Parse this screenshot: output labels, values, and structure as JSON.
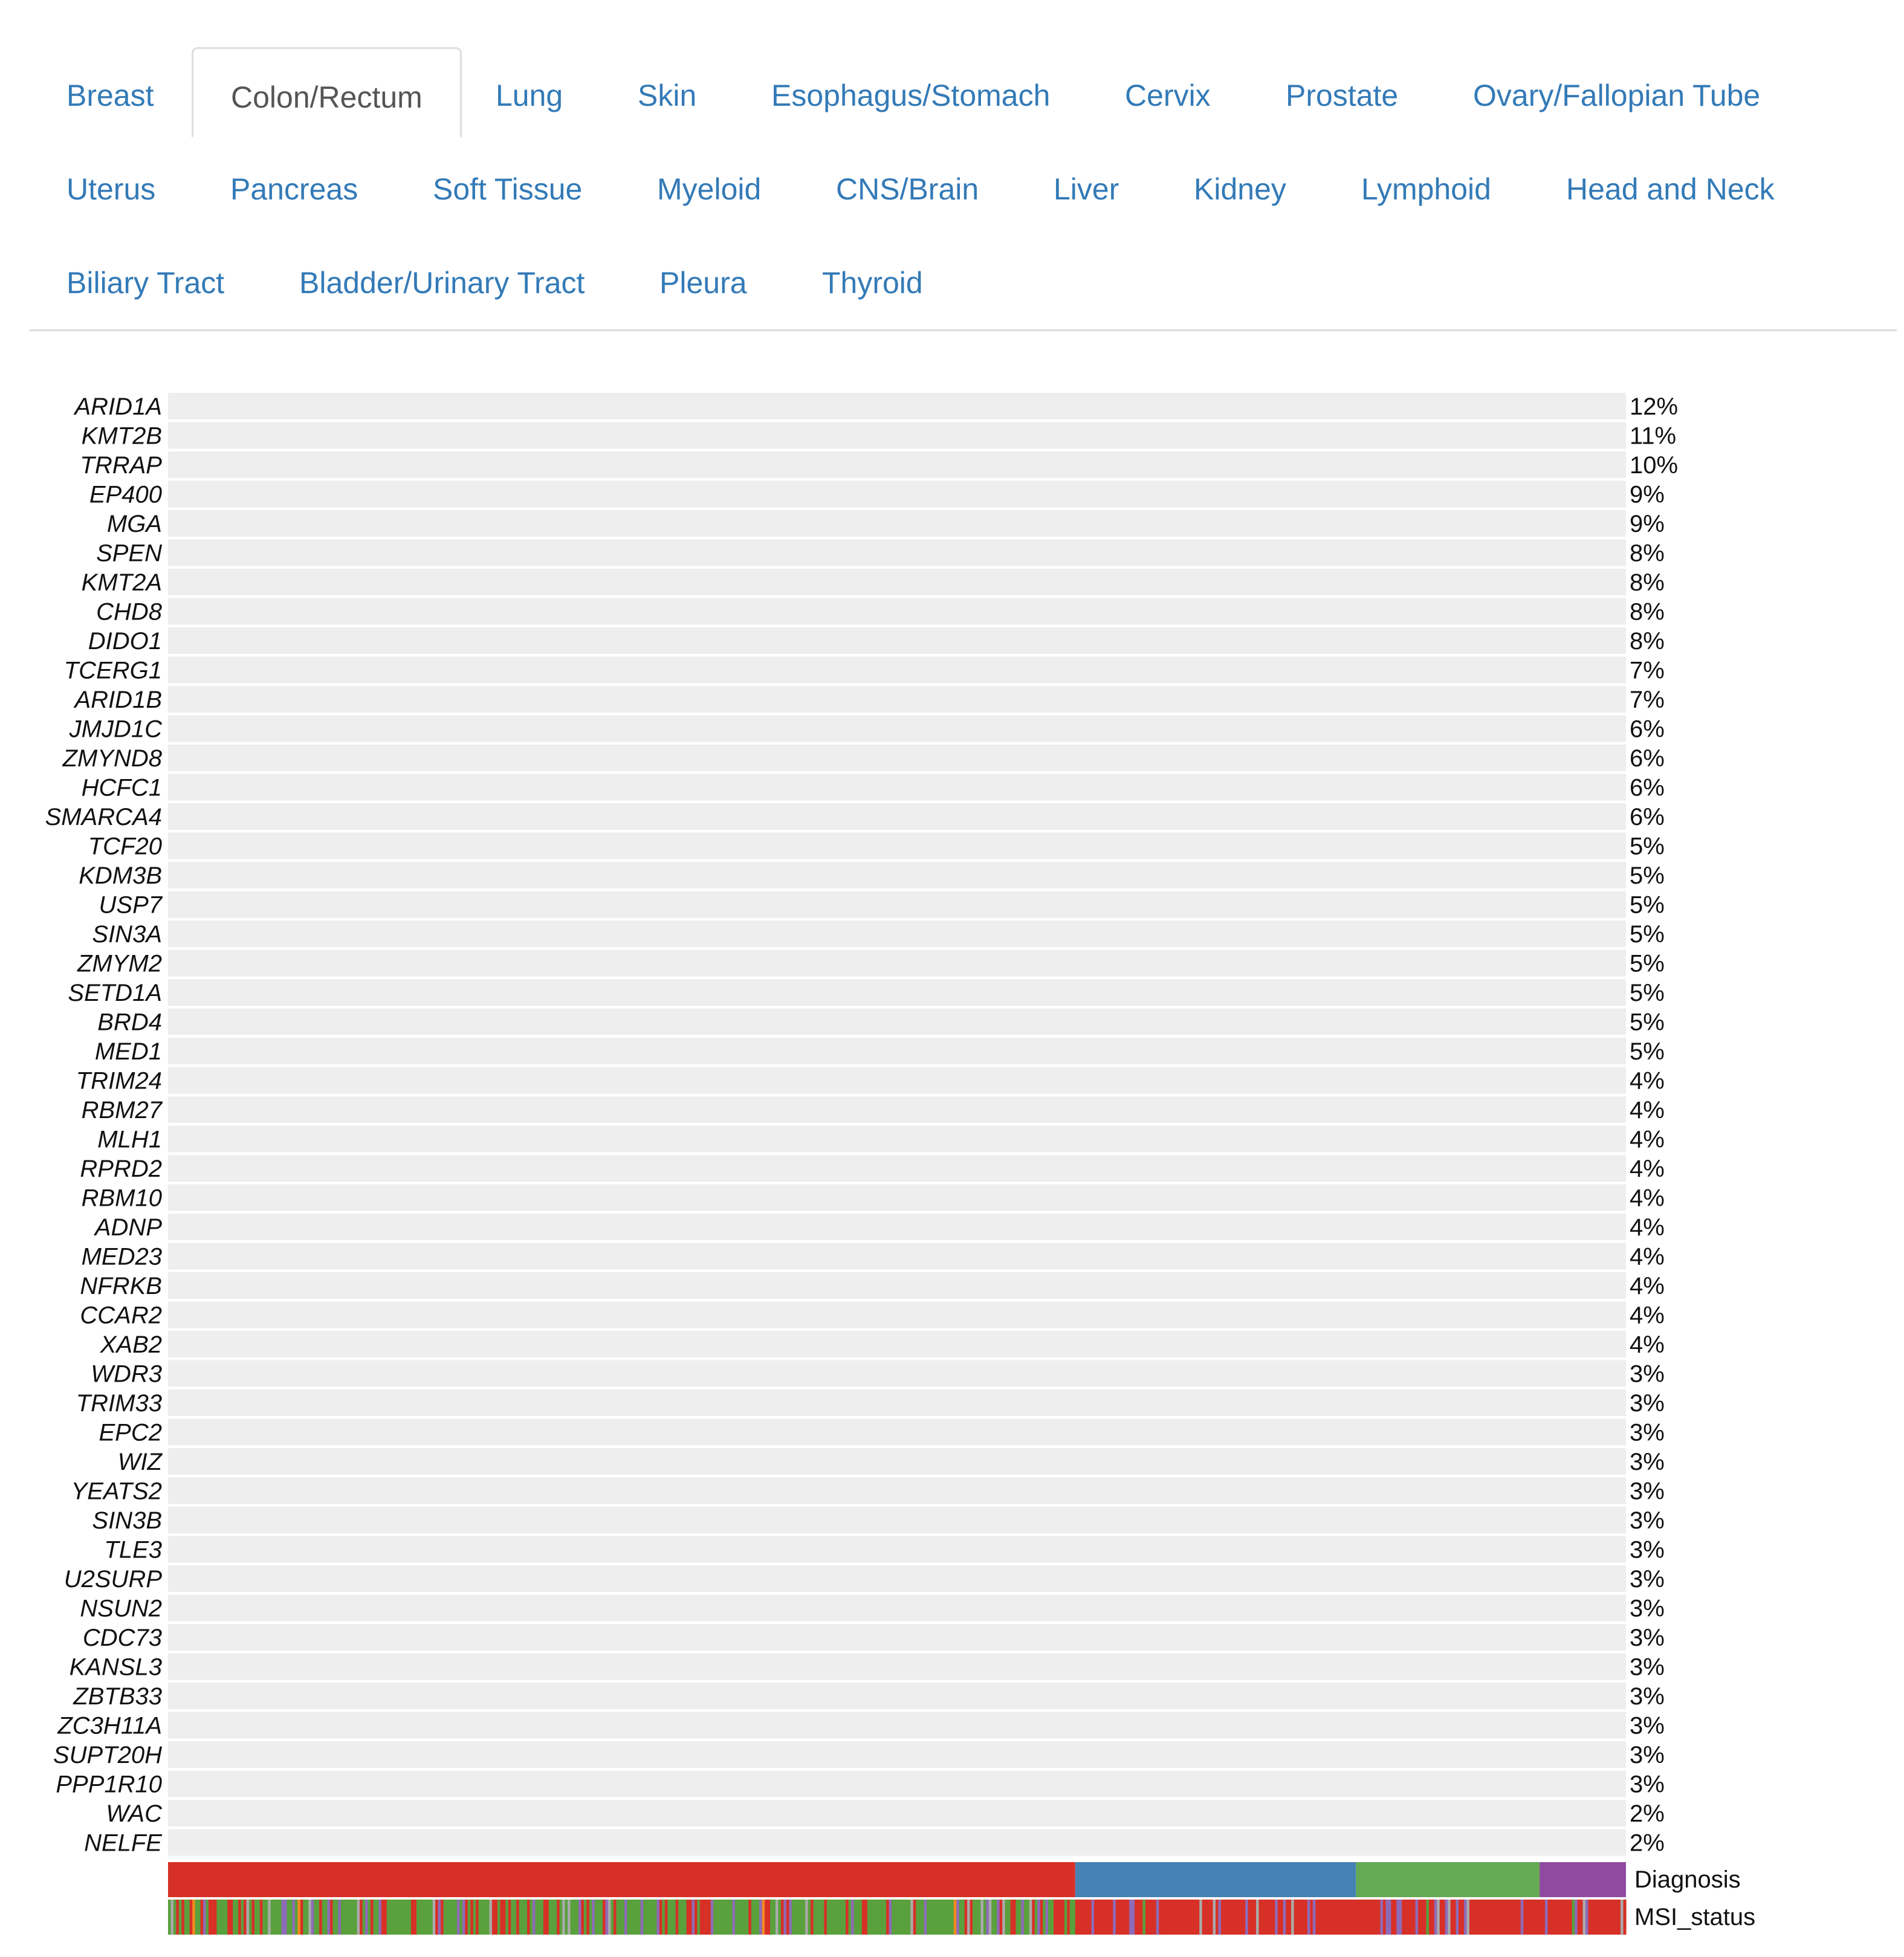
{
  "tabs": {
    "rows": [
      [
        "Breast",
        "Colon/Rectum",
        "Lung",
        "Skin",
        "Esophagus/Stomach",
        "Cervix",
        "Prostate",
        "Ovary/Fallopian Tube"
      ],
      [
        "Uterus",
        "Pancreas",
        "Soft Tissue",
        "Myeloid",
        "CNS/Brain",
        "Liver",
        "Kidney",
        "Lymphoid",
        "Head and Neck"
      ],
      [
        "Biliary Tract",
        "Bladder/Urinary Tract",
        "Pleura",
        "Thyroid"
      ]
    ],
    "active": "Colon/Rectum"
  },
  "chart_data": {
    "type": "heatmap",
    "subtype": "oncoprint",
    "genes": [
      "ARID1A",
      "KMT2B",
      "TRRAP",
      "EP400",
      "MGA",
      "SPEN",
      "KMT2A",
      "CHD8",
      "DIDO1",
      "TCERG1",
      "ARID1B",
      "JMJD1C",
      "ZMYND8",
      "HCFC1",
      "SMARCA4",
      "TCF20",
      "KDM3B",
      "USP7",
      "SIN3A",
      "ZMYM2",
      "SETD1A",
      "BRD4",
      "MED1",
      "TRIM24",
      "RBM27",
      "MLH1",
      "RPRD2",
      "RBM10",
      "ADNP",
      "MED23",
      "NFRKB",
      "CCAR2",
      "XAB2",
      "WDR3",
      "TRIM33",
      "EPC2",
      "WIZ",
      "YEATS2",
      "SIN3B",
      "TLE3",
      "U2SURP",
      "NSUN2",
      "CDC73",
      "KANSL3",
      "ZBTB33",
      "ZC3H11A",
      "SUPT20H",
      "PPP1R10",
      "WAC",
      "NELFE"
    ],
    "percentages": [
      "12%",
      "11%",
      "10%",
      "9%",
      "9%",
      "8%",
      "8%",
      "8%",
      "8%",
      "7%",
      "7%",
      "6%",
      "6%",
      "6%",
      "6%",
      "5%",
      "5%",
      "5%",
      "5%",
      "5%",
      "5%",
      "5%",
      "5%",
      "4%",
      "4%",
      "4%",
      "4%",
      "4%",
      "4%",
      "4%",
      "4%",
      "4%",
      "4%",
      "3%",
      "3%",
      "3%",
      "3%",
      "3%",
      "3%",
      "3%",
      "3%",
      "3%",
      "3%",
      "3%",
      "3%",
      "3%",
      "3%",
      "3%",
      "2%",
      "2%"
    ],
    "frequency_values": [
      12,
      11,
      10,
      9,
      9,
      8,
      8,
      8,
      8,
      7,
      7,
      6,
      6,
      6,
      6,
      5,
      5,
      5,
      5,
      5,
      5,
      5,
      5,
      4,
      4,
      4,
      4,
      4,
      4,
      4,
      4,
      4,
      4,
      3,
      3,
      3,
      3,
      3,
      3,
      3,
      3,
      3,
      3,
      3,
      3,
      3,
      3,
      3,
      2,
      2
    ],
    "annotation_tracks": [
      "Diagnosis",
      "MSI_status"
    ],
    "diagnosis_groups": [
      {
        "color": "#d73027",
        "fraction": 0.623
      },
      {
        "color": "#4682b4",
        "fraction": 0.192
      },
      {
        "color": "#66aa55",
        "fraction": 0.126
      },
      {
        "color": "#8e4ba0",
        "fraction": 0.059
      }
    ],
    "mutation_colors": [
      "#5aa03c",
      "#5aa03c",
      "#5aa03c",
      "#3a7fc0",
      "#111111",
      "#d73027",
      "#7b4ab0",
      "#f28a1e",
      "#f5f08a"
    ],
    "msi_colors": [
      "#5aa03c",
      "#d73027",
      "#8e6bb8",
      "#aaaaaa",
      "#f28a1e"
    ],
    "background_color": "#eeeeee"
  }
}
